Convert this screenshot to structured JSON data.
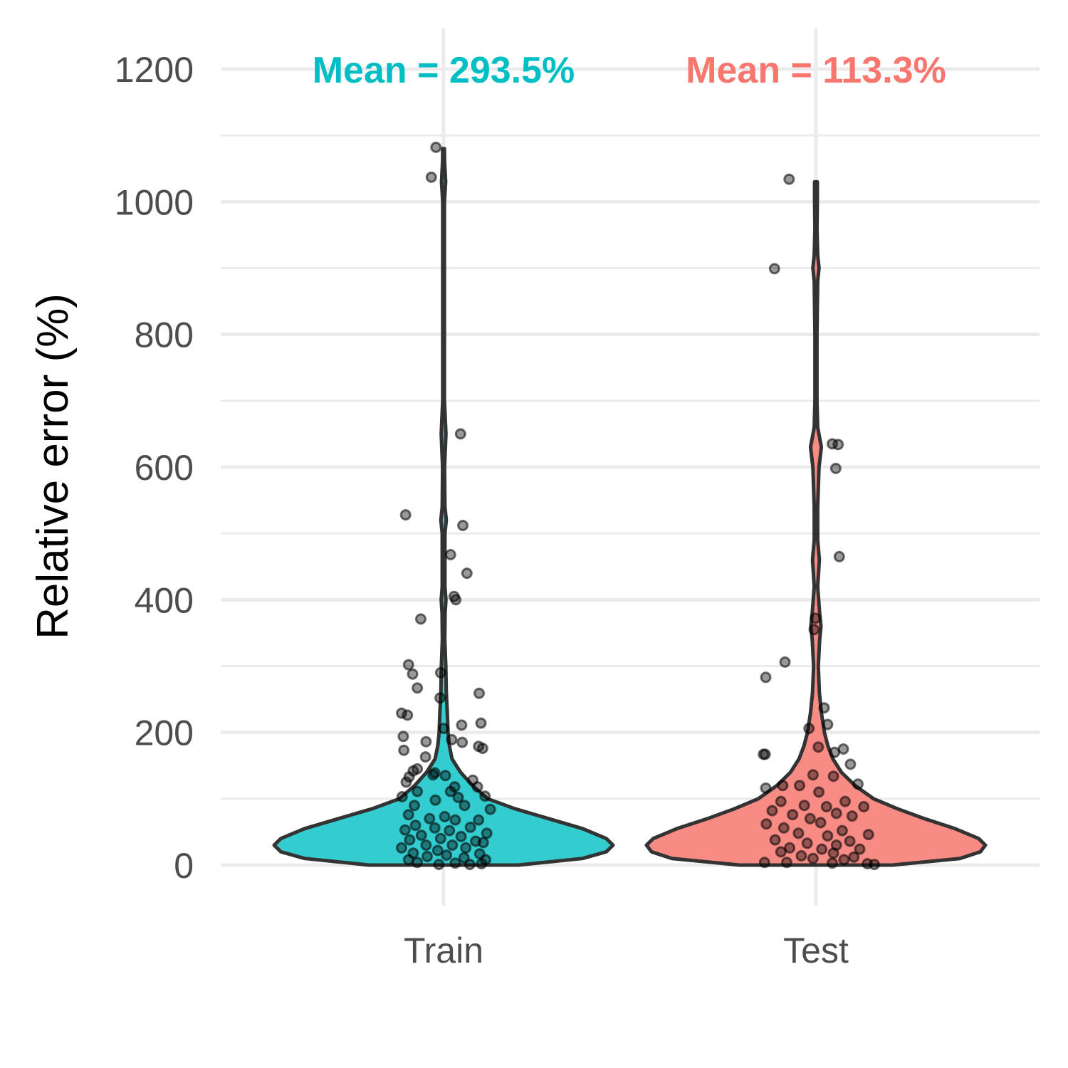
{
  "chart_data": {
    "type": "violin",
    "title": "",
    "xlabel": "",
    "ylabel": "Relative error (%)",
    "ylim": [
      -55,
      1255
    ],
    "yticks": [
      0,
      200,
      400,
      600,
      800,
      1000,
      1200
    ],
    "yticks_minor": [
      100,
      300,
      500,
      700,
      900,
      1100
    ],
    "grid": true,
    "legend": "none",
    "categories": [
      "Train",
      "Test"
    ],
    "groups": [
      {
        "category": "Train",
        "fill": "#33cccf",
        "annotation": "Mean = 293.5%",
        "annotation_color": "#00BFC4",
        "max": 1080,
        "density_profile": [
          [
            0,
            0.44
          ],
          [
            10,
            0.82
          ],
          [
            20,
            0.96
          ],
          [
            30,
            1.0
          ],
          [
            40,
            0.96
          ],
          [
            55,
            0.82
          ],
          [
            70,
            0.62
          ],
          [
            85,
            0.42
          ],
          [
            100,
            0.26
          ],
          [
            120,
            0.17
          ],
          [
            140,
            0.1
          ],
          [
            160,
            0.05
          ],
          [
            180,
            0.034
          ],
          [
            200,
            0.026
          ],
          [
            230,
            0.022
          ],
          [
            260,
            0.016
          ],
          [
            300,
            0.013
          ],
          [
            340,
            0.007
          ],
          [
            380,
            0.009
          ],
          [
            400,
            0.014
          ],
          [
            420,
            0.008
          ],
          [
            460,
            0.008
          ],
          [
            500,
            0.008
          ],
          [
            520,
            0.016
          ],
          [
            540,
            0.008
          ],
          [
            600,
            0.006
          ],
          [
            650,
            0.014
          ],
          [
            700,
            0.005
          ],
          [
            800,
            0.005
          ],
          [
            900,
            0.005
          ],
          [
            1000,
            0.005
          ],
          [
            1030,
            0.012
          ],
          [
            1060,
            0.006
          ],
          [
            1080,
            0.005
          ]
        ],
        "points": [
          [
            -0.13,
            1082
          ],
          [
            -0.21,
            1037
          ],
          [
            0.29,
            650
          ],
          [
            -0.65,
            528
          ],
          [
            0.33,
            512
          ],
          [
            0.12,
            468
          ],
          [
            0.4,
            440
          ],
          [
            0.18,
            405
          ],
          [
            0.21,
            400
          ],
          [
            -0.39,
            371
          ],
          [
            -0.6,
            302
          ],
          [
            -0.53,
            288
          ],
          [
            -0.05,
            290
          ],
          [
            -0.45,
            267
          ],
          [
            0.61,
            259
          ],
          [
            -0.06,
            252
          ],
          [
            -0.72,
            229
          ],
          [
            -0.62,
            226
          ],
          [
            0.31,
            211
          ],
          [
            0.64,
            214
          ],
          [
            0.0,
            206
          ],
          [
            -0.69,
            194
          ],
          [
            0.14,
            189
          ],
          [
            0.32,
            185
          ],
          [
            -0.3,
            186
          ],
          [
            -0.68,
            173
          ],
          [
            0.6,
            179
          ],
          [
            0.67,
            176
          ],
          [
            -0.31,
            163
          ],
          [
            -0.52,
            142
          ],
          [
            -0.45,
            145
          ],
          [
            -0.59,
            133
          ],
          [
            -0.18,
            136
          ],
          [
            0.03,
            135
          ],
          [
            -0.15,
            139
          ],
          [
            0.5,
            128
          ],
          [
            -0.64,
            125
          ],
          [
            0.19,
            118
          ],
          [
            0.58,
            118
          ],
          [
            -0.45,
            111
          ],
          [
            0.12,
            111
          ],
          [
            0.25,
            102
          ],
          [
            -0.71,
            103
          ],
          [
            0.71,
            104
          ],
          [
            -0.14,
            98
          ],
          [
            -0.5,
            90
          ],
          [
            0.36,
            90
          ],
          [
            0.8,
            84
          ],
          [
            -0.6,
            76
          ],
          [
            0.02,
            73
          ],
          [
            -0.24,
            70
          ],
          [
            0.2,
            68
          ],
          [
            0.6,
            68
          ],
          [
            -0.48,
            60
          ],
          [
            0.46,
            57
          ],
          [
            -0.15,
            56
          ],
          [
            -0.66,
            53
          ],
          [
            0.1,
            52
          ],
          [
            0.74,
            48
          ],
          [
            -0.38,
            45
          ],
          [
            0.3,
            43
          ],
          [
            -0.05,
            40
          ],
          [
            -0.58,
            38
          ],
          [
            0.55,
            36
          ],
          [
            0.68,
            34
          ],
          [
            -0.3,
            30
          ],
          [
            0.15,
            30
          ],
          [
            -0.72,
            26
          ],
          [
            0.38,
            26
          ],
          [
            -0.1,
            22
          ],
          [
            -0.52,
            18
          ],
          [
            0.62,
            17
          ],
          [
            0.05,
            15
          ],
          [
            -0.28,
            13
          ],
          [
            0.35,
            11
          ],
          [
            -0.6,
            8
          ],
          [
            0.72,
            8
          ],
          [
            -0.45,
            4
          ],
          [
            0.2,
            3
          ],
          [
            0.65,
            2
          ],
          [
            -0.08,
            1
          ],
          [
            0.45,
            1
          ]
        ]
      },
      {
        "category": "Test",
        "fill": "#f98b85",
        "annotation": "Mean = 113.3%",
        "annotation_color": "#F8766D",
        "max": 1030,
        "density_profile": [
          [
            0,
            0.45
          ],
          [
            10,
            0.85
          ],
          [
            20,
            0.97
          ],
          [
            30,
            1.0
          ],
          [
            40,
            0.96
          ],
          [
            55,
            0.82
          ],
          [
            70,
            0.64
          ],
          [
            85,
            0.48
          ],
          [
            100,
            0.34
          ],
          [
            120,
            0.23
          ],
          [
            140,
            0.15
          ],
          [
            160,
            0.1
          ],
          [
            180,
            0.07
          ],
          [
            200,
            0.05
          ],
          [
            230,
            0.032
          ],
          [
            260,
            0.02
          ],
          [
            300,
            0.014
          ],
          [
            340,
            0.022
          ],
          [
            360,
            0.03
          ],
          [
            380,
            0.022
          ],
          [
            420,
            0.01
          ],
          [
            460,
            0.02
          ],
          [
            490,
            0.01
          ],
          [
            540,
            0.01
          ],
          [
            600,
            0.018
          ],
          [
            630,
            0.032
          ],
          [
            660,
            0.01
          ],
          [
            700,
            0.006
          ],
          [
            800,
            0.006
          ],
          [
            880,
            0.01
          ],
          [
            900,
            0.018
          ],
          [
            920,
            0.01
          ],
          [
            960,
            0.006
          ],
          [
            1000,
            0.008
          ],
          [
            1030,
            0.008
          ]
        ],
        "points": [
          [
            -0.46,
            1034
          ],
          [
            -0.71,
            899
          ],
          [
            0.28,
            635
          ],
          [
            0.38,
            634
          ],
          [
            0.34,
            598
          ],
          [
            0.4,
            465
          ],
          [
            -0.01,
            372
          ],
          [
            -0.03,
            355
          ],
          [
            -0.53,
            306
          ],
          [
            -0.86,
            283
          ],
          [
            0.14,
            237
          ],
          [
            0.2,
            212
          ],
          [
            -0.12,
            206
          ],
          [
            -0.9,
            167
          ],
          [
            -0.87,
            167
          ],
          [
            0.04,
            178
          ],
          [
            0.47,
            175
          ],
          [
            0.32,
            170
          ],
          [
            0.59,
            152
          ],
          [
            -0.86,
            116
          ],
          [
            0.72,
            122
          ],
          [
            -0.57,
            120
          ],
          [
            -0.05,
            136
          ],
          [
            0.3,
            134
          ],
          [
            -0.28,
            120
          ],
          [
            0.05,
            110
          ],
          [
            -0.6,
            96
          ],
          [
            0.5,
            96
          ],
          [
            -0.2,
            90
          ],
          [
            0.18,
            88
          ],
          [
            0.82,
            88
          ],
          [
            -0.75,
            82
          ],
          [
            -0.4,
            76
          ],
          [
            0.35,
            78
          ],
          [
            0.62,
            74
          ],
          [
            -0.1,
            70
          ],
          [
            -0.85,
            62
          ],
          [
            0.08,
            64
          ],
          [
            -0.55,
            56
          ],
          [
            0.45,
            52
          ],
          [
            0.9,
            46
          ],
          [
            -0.3,
            48
          ],
          [
            0.2,
            44
          ],
          [
            -0.7,
            38
          ],
          [
            0.58,
            36
          ],
          [
            -0.15,
            33
          ],
          [
            0.35,
            30
          ],
          [
            -0.45,
            26
          ],
          [
            0.1,
            24
          ],
          [
            0.75,
            24
          ],
          [
            -0.6,
            20
          ],
          [
            0.3,
            18
          ],
          [
            -0.25,
            14
          ],
          [
            0.65,
            12
          ],
          [
            -0.05,
            10
          ],
          [
            0.48,
            8
          ],
          [
            -0.88,
            4
          ],
          [
            -0.5,
            4
          ],
          [
            0.28,
            3
          ],
          [
            0.88,
            2
          ],
          [
            1.0,
            1
          ]
        ]
      }
    ]
  }
}
